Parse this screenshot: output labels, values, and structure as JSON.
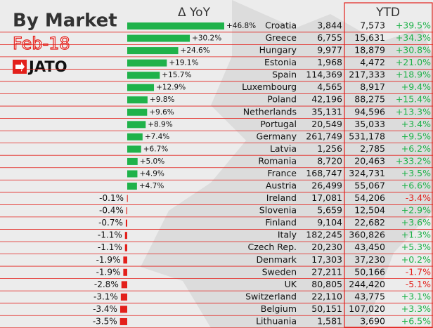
{
  "title": "By Market",
  "subtitle": "Feb-18",
  "brand": "JATO",
  "chart_data": {
    "type": "bar",
    "orientation": "horizontal",
    "title": "Δ YoY",
    "categories": [
      "Croatia",
      "Greece",
      "Hungary",
      "Estonia",
      "Spain",
      "Luxembourg",
      "Poland",
      "Netherlands",
      "Portugal",
      "Germany",
      "Latvia",
      "Romania",
      "France",
      "Austria",
      "Ireland",
      "Slovenia",
      "Finland",
      "Italy",
      "Czech Rep.",
      "Denmark",
      "Sweden",
      "UK",
      "Switzerland",
      "Belgium",
      "Lithuania"
    ],
    "values": [
      46.8,
      30.2,
      24.6,
      19.1,
      15.7,
      12.9,
      9.8,
      9.6,
      8.9,
      7.4,
      6.7,
      5.0,
      4.9,
      4.7,
      -0.1,
      -0.4,
      -0.7,
      -1.1,
      -1.1,
      -1.9,
      -1.9,
      -2.8,
      -3.1,
      -3.4,
      -3.5
    ],
    "value_labels": [
      "+46.8%",
      "+30.2%",
      "+24.6%",
      "+19.1%",
      "+15.7%",
      "+12.9%",
      "+9.8%",
      "+9.6%",
      "+8.9%",
      "+7.4%",
      "+6.7%",
      "+5.0%",
      "+4.9%",
      "+4.7%",
      "-0.1%",
      "-0.4%",
      "-0.7%",
      "-1.1%",
      "-1.1%",
      "-1.9%",
      "-1.9%",
      "-2.8%",
      "-3.1%",
      "-3.4%",
      "-3.5%"
    ],
    "positive_color": "#1fb24a",
    "negative_color": "#e3201b"
  },
  "table": {
    "ytd_header": "YTD",
    "rows": [
      [
        "3,844",
        "7,573",
        "+39.5%"
      ],
      [
        "6,755",
        "15,631",
        "+34.3%"
      ],
      [
        "9,977",
        "18,879",
        "+30.8%"
      ],
      [
        "1,968",
        "4,472",
        "+21.0%"
      ],
      [
        "114,369",
        "217,333",
        "+18.9%"
      ],
      [
        "4,565",
        "8,917",
        "+9.4%"
      ],
      [
        "42,196",
        "88,275",
        "+15.4%"
      ],
      [
        "35,131",
        "94,596",
        "+13.3%"
      ],
      [
        "20,549",
        "35,033",
        "+3.4%"
      ],
      [
        "261,749",
        "531,178",
        "+9.5%"
      ],
      [
        "1,256",
        "2,785",
        "+6.2%"
      ],
      [
        "8,720",
        "20,463",
        "+33.2%"
      ],
      [
        "168,747",
        "324,731",
        "+3.5%"
      ],
      [
        "26,499",
        "55,067",
        "+6.6%"
      ],
      [
        "17,081",
        "54,206",
        "-3.4%"
      ],
      [
        "5,659",
        "12,504",
        "+2.9%"
      ],
      [
        "9,104",
        "22,682",
        "+3.6%"
      ],
      [
        "182,245",
        "360,826",
        "+1.3%"
      ],
      [
        "20,230",
        "43,450",
        "+5.3%"
      ],
      [
        "17,303",
        "37,230",
        "+0.2%"
      ],
      [
        "27,211",
        "50,166",
        "-1.7%"
      ],
      [
        "80,805",
        "244,420",
        "-5.1%"
      ],
      [
        "22,110",
        "43,775",
        "+3.1%"
      ],
      [
        "50,151",
        "107,020",
        "+3.3%"
      ],
      [
        "1,581",
        "3,690",
        "+6.5%"
      ]
    ]
  }
}
